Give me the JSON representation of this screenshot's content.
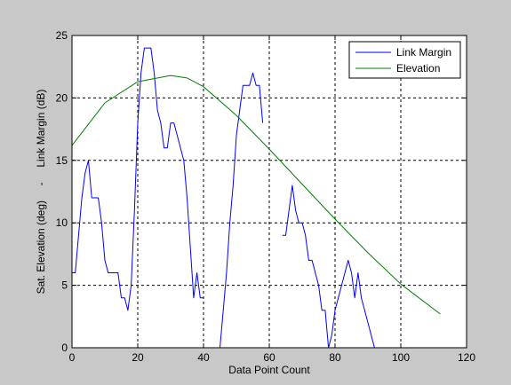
{
  "chart_data": {
    "type": "line",
    "title": "",
    "xlabel": "Data Point Count",
    "ylabel": "Sat. Elevation (deg)     -     Link Margin (dB)",
    "xlim": [
      0,
      120
    ],
    "ylim": [
      0,
      25
    ],
    "xticks": [
      0,
      20,
      40,
      60,
      80,
      100,
      120
    ],
    "yticks": [
      0,
      5,
      10,
      15,
      20,
      25
    ],
    "grid": true,
    "legend_position": "top-right",
    "series": [
      {
        "name": "Link Margin",
        "color": "#0000ff",
        "segments": [
          {
            "x": [
              0,
              1,
              2,
              3,
              4,
              5,
              6,
              7,
              8,
              9,
              10,
              11,
              12,
              13,
              14,
              15,
              16,
              17,
              18,
              19,
              20,
              21,
              22,
              23,
              24,
              25,
              26,
              27,
              28,
              29,
              30,
              31,
              32,
              33,
              34,
              35,
              36,
              37,
              38,
              39,
              40
            ],
            "y": [
              6,
              6,
              9,
              12,
              14,
              15,
              12,
              12,
              12,
              10,
              7,
              6,
              6,
              6,
              6,
              4,
              4,
              3,
              5,
              11,
              18,
              22,
              24,
              24,
              24,
              22,
              19,
              18,
              16,
              16,
              18,
              18,
              17,
              16,
              15,
              12,
              8,
              4,
              6,
              4,
              4
            ]
          },
          {
            "x": [
              45,
              46,
              47,
              48,
              49,
              50,
              51,
              52,
              53,
              54,
              55,
              56,
              57,
              58
            ],
            "y": [
              0,
              3,
              6,
              10,
              13,
              17,
              19,
              21,
              21,
              21,
              22,
              21,
              21,
              18
            ]
          },
          {
            "x": [
              64,
              65,
              66,
              67,
              68,
              69,
              70,
              71,
              72,
              73,
              74,
              75,
              76,
              77,
              78,
              79,
              80,
              81,
              82,
              83,
              84,
              85,
              86,
              87,
              88,
              89,
              90,
              91,
              92
            ],
            "y": [
              9,
              9,
              11,
              13,
              11,
              10,
              10,
              9,
              7,
              7,
              6,
              5,
              3,
              3,
              0,
              1,
              3,
              4,
              5,
              6,
              7,
              6,
              4,
              6,
              4,
              3,
              2,
              1,
              0
            ]
          }
        ]
      },
      {
        "name": "Elevation",
        "color": "#007f00",
        "x": [
          0,
          10,
          20,
          30,
          35,
          40,
          50,
          60,
          70,
          80,
          90,
          100,
          112
        ],
        "y": [
          16.2,
          19.6,
          21.3,
          21.8,
          21.6,
          20.9,
          18.6,
          15.9,
          13.1,
          10.3,
          7.6,
          5.1,
          2.7
        ]
      }
    ]
  }
}
